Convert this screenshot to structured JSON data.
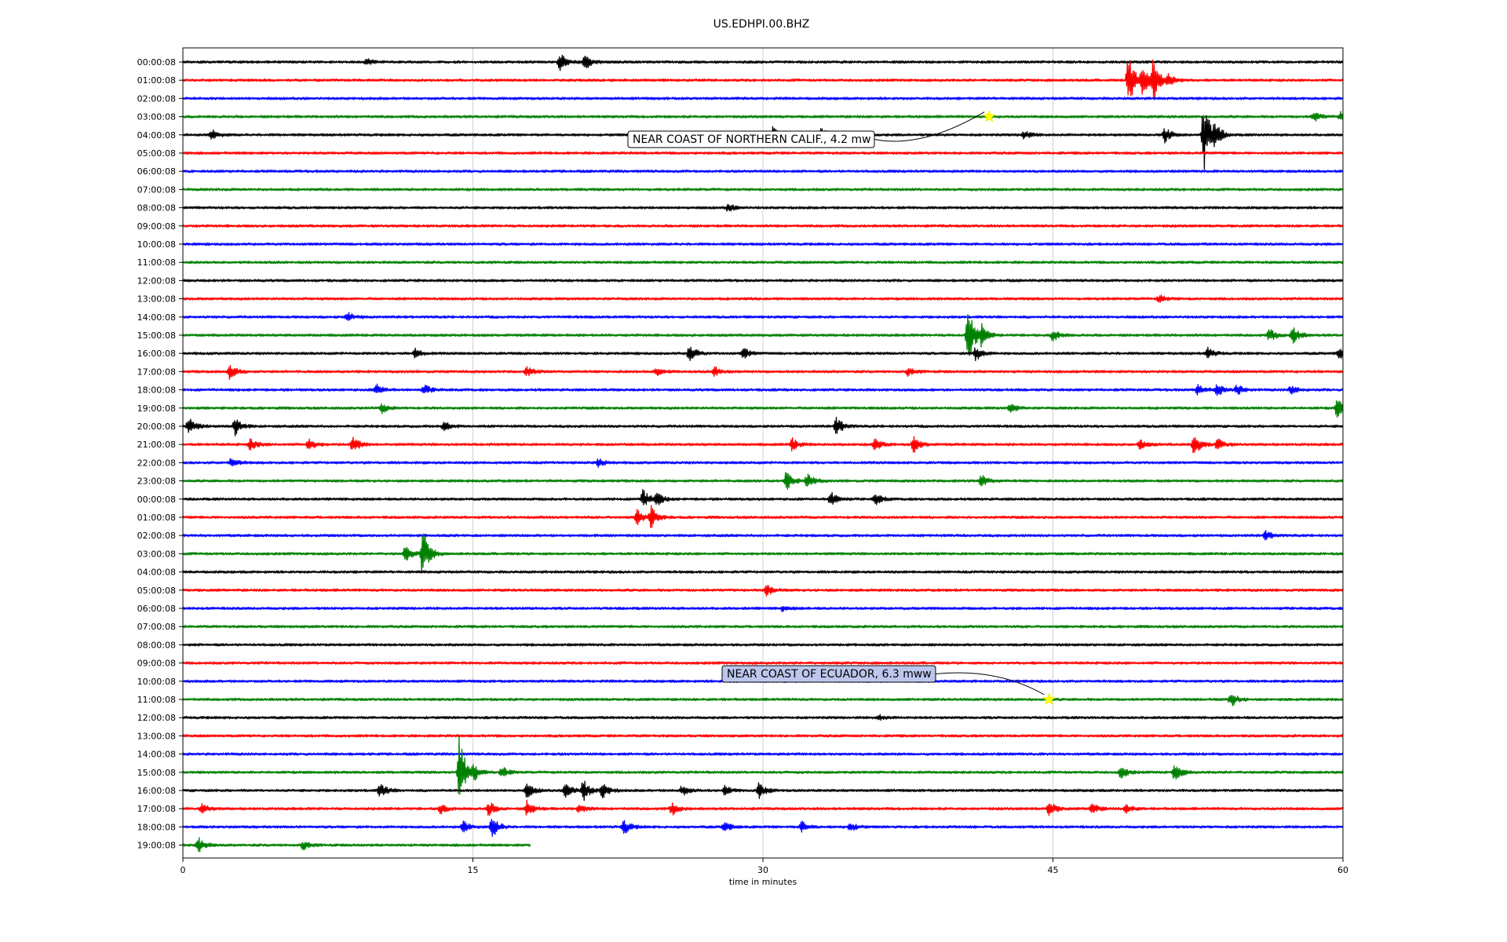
{
  "chart_data": {
    "type": "line",
    "title": "US.EDHPI.00.BHZ",
    "xlabel": "time in minutes",
    "ylabel": "",
    "xlim": [
      0,
      60
    ],
    "x_ticks": [
      "0",
      "15",
      "30",
      "45",
      "60"
    ],
    "grid": "vertical lines at each x tick",
    "legend": "none",
    "color_cycle": [
      "#000000",
      "#ff0000",
      "#0000ff",
      "#008000"
    ],
    "row_labels": [
      "00:00:08",
      "01:00:08",
      "02:00:08",
      "03:00:08",
      "04:00:08",
      "05:00:08",
      "06:00:08",
      "07:00:08",
      "08:00:08",
      "09:00:08",
      "10:00:08",
      "11:00:08",
      "12:00:08",
      "13:00:08",
      "14:00:08",
      "15:00:08",
      "16:00:08",
      "17:00:08",
      "18:00:08",
      "19:00:08",
      "20:00:08",
      "21:00:08",
      "22:00:08",
      "23:00:08",
      "00:00:08",
      "01:00:08",
      "02:00:08",
      "03:00:08",
      "04:00:08",
      "05:00:08",
      "06:00:08",
      "07:00:08",
      "08:00:08",
      "09:00:08",
      "10:00:08",
      "11:00:08",
      "12:00:08",
      "13:00:08",
      "14:00:08",
      "15:00:08",
      "16:00:08",
      "17:00:08",
      "18:00:08",
      "19:00:08"
    ],
    "last_row_end_minute": 18,
    "bursts": [
      {
        "row": 0,
        "minute": 19.5,
        "amp": 0.6
      },
      {
        "row": 0,
        "minute": 20.8,
        "amp": 0.5
      },
      {
        "row": 0,
        "minute": 9.5,
        "amp": 0.2
      },
      {
        "row": 1,
        "minute": 48.9,
        "amp": 1.8
      },
      {
        "row": 1,
        "minute": 49.6,
        "amp": 1.1
      },
      {
        "row": 1,
        "minute": 50.2,
        "amp": 1.5
      },
      {
        "row": 1,
        "minute": 51.0,
        "amp": 0.5
      },
      {
        "row": 3,
        "minute": 58.5,
        "amp": 0.35
      },
      {
        "row": 3,
        "minute": 59.9,
        "amp": 0.3
      },
      {
        "row": 4,
        "minute": 1.5,
        "amp": 0.3
      },
      {
        "row": 4,
        "minute": 30.5,
        "amp": 0.5
      },
      {
        "row": 4,
        "minute": 33.0,
        "amp": 0.5
      },
      {
        "row": 4,
        "minute": 43.5,
        "amp": 0.3
      },
      {
        "row": 4,
        "minute": 50.8,
        "amp": 0.5
      },
      {
        "row": 4,
        "minute": 52.8,
        "amp": 2.4
      },
      {
        "row": 4,
        "minute": 53.4,
        "amp": 0.6
      },
      {
        "row": 8,
        "minute": 28.2,
        "amp": 0.25
      },
      {
        "row": 13,
        "minute": 50.5,
        "amp": 0.25
      },
      {
        "row": 14,
        "minute": 8.5,
        "amp": 0.3
      },
      {
        "row": 15,
        "minute": 40.6,
        "amp": 2.0
      },
      {
        "row": 15,
        "minute": 41.3,
        "amp": 0.6
      },
      {
        "row": 15,
        "minute": 45.0,
        "amp": 0.4
      },
      {
        "row": 15,
        "minute": 56.2,
        "amp": 0.4
      },
      {
        "row": 15,
        "minute": 57.4,
        "amp": 0.6
      },
      {
        "row": 16,
        "minute": 12.0,
        "amp": 0.3
      },
      {
        "row": 16,
        "minute": 26.2,
        "amp": 0.6
      },
      {
        "row": 16,
        "minute": 29.0,
        "amp": 0.35
      },
      {
        "row": 16,
        "minute": 41.0,
        "amp": 0.5
      },
      {
        "row": 16,
        "minute": 53.0,
        "amp": 0.35
      },
      {
        "row": 16,
        "minute": 59.8,
        "amp": 0.4
      },
      {
        "row": 17,
        "minute": 2.4,
        "amp": 0.55
      },
      {
        "row": 17,
        "minute": 17.8,
        "amp": 0.3
      },
      {
        "row": 17,
        "minute": 24.5,
        "amp": 0.3
      },
      {
        "row": 17,
        "minute": 27.5,
        "amp": 0.3
      },
      {
        "row": 17,
        "minute": 37.5,
        "amp": 0.25
      },
      {
        "row": 18,
        "minute": 10.0,
        "amp": 0.35
      },
      {
        "row": 18,
        "minute": 12.5,
        "amp": 0.3
      },
      {
        "row": 18,
        "minute": 52.5,
        "amp": 0.35
      },
      {
        "row": 18,
        "minute": 53.5,
        "amp": 0.4
      },
      {
        "row": 18,
        "minute": 54.5,
        "amp": 0.35
      },
      {
        "row": 18,
        "minute": 57.3,
        "amp": 0.3
      },
      {
        "row": 19,
        "minute": 10.3,
        "amp": 0.3
      },
      {
        "row": 19,
        "minute": 42.8,
        "amp": 0.3
      },
      {
        "row": 19,
        "minute": 59.7,
        "amp": 0.65
      },
      {
        "row": 20,
        "minute": 0.3,
        "amp": 0.55
      },
      {
        "row": 20,
        "minute": 2.7,
        "amp": 0.6
      },
      {
        "row": 20,
        "minute": 13.5,
        "amp": 0.3
      },
      {
        "row": 20,
        "minute": 33.8,
        "amp": 0.6
      },
      {
        "row": 21,
        "minute": 3.5,
        "amp": 0.4
      },
      {
        "row": 21,
        "minute": 6.5,
        "amp": 0.4
      },
      {
        "row": 21,
        "minute": 8.8,
        "amp": 0.6
      },
      {
        "row": 21,
        "minute": 31.5,
        "amp": 0.4
      },
      {
        "row": 21,
        "minute": 35.8,
        "amp": 0.4
      },
      {
        "row": 21,
        "minute": 37.8,
        "amp": 0.5
      },
      {
        "row": 21,
        "minute": 49.5,
        "amp": 0.3
      },
      {
        "row": 21,
        "minute": 52.3,
        "amp": 0.7
      },
      {
        "row": 21,
        "minute": 53.5,
        "amp": 0.4
      },
      {
        "row": 22,
        "minute": 2.5,
        "amp": 0.3
      },
      {
        "row": 22,
        "minute": 21.5,
        "amp": 0.25
      },
      {
        "row": 23,
        "minute": 31.2,
        "amp": 0.6
      },
      {
        "row": 23,
        "minute": 32.3,
        "amp": 0.5
      },
      {
        "row": 23,
        "minute": 41.3,
        "amp": 0.4
      },
      {
        "row": 24,
        "minute": 23.8,
        "amp": 0.6
      },
      {
        "row": 24,
        "minute": 24.5,
        "amp": 0.4
      },
      {
        "row": 24,
        "minute": 33.5,
        "amp": 0.5
      },
      {
        "row": 24,
        "minute": 35.8,
        "amp": 0.4
      },
      {
        "row": 25,
        "minute": 23.5,
        "amp": 0.5
      },
      {
        "row": 25,
        "minute": 24.2,
        "amp": 0.7
      },
      {
        "row": 26,
        "minute": 56.0,
        "amp": 0.3
      },
      {
        "row": 27,
        "minute": 11.5,
        "amp": 0.5
      },
      {
        "row": 27,
        "minute": 12.4,
        "amp": 1.7
      },
      {
        "row": 29,
        "minute": 30.2,
        "amp": 0.35
      },
      {
        "row": 30,
        "minute": 31.0,
        "amp": 0.15
      },
      {
        "row": 35,
        "minute": 54.2,
        "amp": 0.5
      },
      {
        "row": 36,
        "minute": 36.0,
        "amp": 0.15
      },
      {
        "row": 39,
        "minute": 14.3,
        "amp": 2.5
      },
      {
        "row": 39,
        "minute": 15.0,
        "amp": 0.5
      },
      {
        "row": 39,
        "minute": 16.5,
        "amp": 0.35
      },
      {
        "row": 39,
        "minute": 48.5,
        "amp": 0.4
      },
      {
        "row": 39,
        "minute": 51.3,
        "amp": 0.6
      },
      {
        "row": 40,
        "minute": 10.2,
        "amp": 0.5
      },
      {
        "row": 40,
        "minute": 17.8,
        "amp": 0.5
      },
      {
        "row": 40,
        "minute": 19.8,
        "amp": 0.6
      },
      {
        "row": 40,
        "minute": 20.7,
        "amp": 0.7
      },
      {
        "row": 40,
        "minute": 21.7,
        "amp": 0.5
      },
      {
        "row": 40,
        "minute": 25.8,
        "amp": 0.35
      },
      {
        "row": 40,
        "minute": 28.0,
        "amp": 0.3
      },
      {
        "row": 40,
        "minute": 29.8,
        "amp": 0.5
      },
      {
        "row": 41,
        "minute": 1.0,
        "amp": 0.3
      },
      {
        "row": 41,
        "minute": 13.3,
        "amp": 0.35
      },
      {
        "row": 41,
        "minute": 15.8,
        "amp": 0.5
      },
      {
        "row": 41,
        "minute": 17.8,
        "amp": 0.5
      },
      {
        "row": 41,
        "minute": 20.5,
        "amp": 0.3
      },
      {
        "row": 41,
        "minute": 25.3,
        "amp": 0.4
      },
      {
        "row": 41,
        "minute": 44.8,
        "amp": 0.5
      },
      {
        "row": 41,
        "minute": 47.0,
        "amp": 0.4
      },
      {
        "row": 41,
        "minute": 48.8,
        "amp": 0.3
      },
      {
        "row": 42,
        "minute": 14.5,
        "amp": 0.35
      },
      {
        "row": 42,
        "minute": 16.0,
        "amp": 0.7
      },
      {
        "row": 42,
        "minute": 22.8,
        "amp": 0.5
      },
      {
        "row": 42,
        "minute": 28.0,
        "amp": 0.35
      },
      {
        "row": 42,
        "minute": 32.0,
        "amp": 0.35
      },
      {
        "row": 42,
        "minute": 34.5,
        "amp": 0.3
      },
      {
        "row": 43,
        "minute": 0.8,
        "amp": 0.5
      },
      {
        "row": 43,
        "minute": 6.2,
        "amp": 0.3
      }
    ],
    "annotations": [
      {
        "text": "NEAR COAST OF NORTHERN CALIF., 4.2 mw",
        "row": 3,
        "minute": 41.7
      },
      {
        "text": "NEAR COAST OF ECUADOR, 6.3 mww",
        "row": 35,
        "minute": 44.8
      }
    ]
  }
}
